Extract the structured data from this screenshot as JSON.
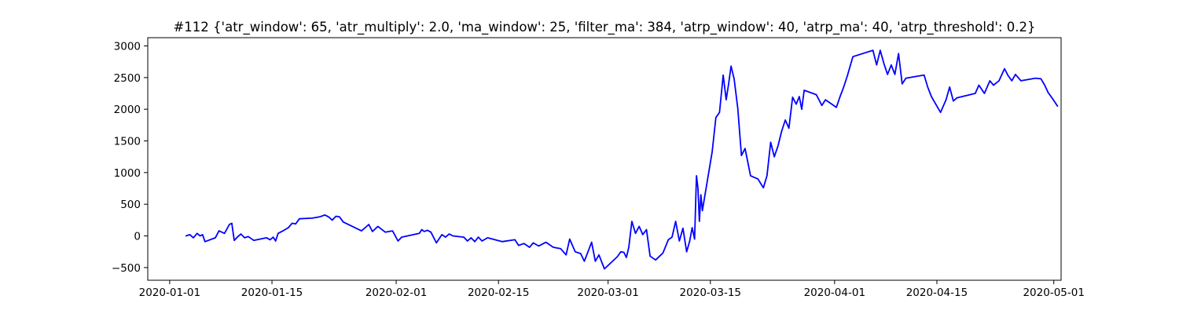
{
  "chart_data": {
    "type": "line",
    "title": "#112 {'atr_window': 65, 'atr_multiply': 2.0, 'ma_window': 25, 'filter_ma': 384, 'atrp_window': 40, 'atrp_ma': 40, 'atrp_threshold': 0.2}",
    "xlabel": "",
    "ylabel": "",
    "xlim": [
      "2019-12-29",
      "2020-05-02"
    ],
    "ylim": [
      -700,
      3130
    ],
    "x_ticks": [
      "2020-01-01",
      "2020-01-15",
      "2020-02-01",
      "2020-02-15",
      "2020-03-01",
      "2020-03-15",
      "2020-04-01",
      "2020-04-15",
      "2020-05-01"
    ],
    "y_ticks": [
      3000,
      2500,
      2000,
      1500,
      1000,
      500,
      0,
      -500
    ],
    "grid": false,
    "line_color": "#0000ff",
    "series": [
      {
        "points": [
          [
            "2020-01-03",
            0
          ],
          [
            "2020-01-03",
            20
          ],
          [
            "2020-01-04",
            -30
          ],
          [
            "2020-01-04",
            40
          ],
          [
            "2020-01-05",
            0
          ],
          [
            "2020-01-05",
            20
          ],
          [
            "2020-01-05",
            -90
          ],
          [
            "2020-01-07",
            -30
          ],
          [
            "2020-01-07",
            80
          ],
          [
            "2020-01-08",
            40
          ],
          [
            "2020-01-09",
            180
          ],
          [
            "2020-01-09",
            200
          ],
          [
            "2020-01-09",
            -70
          ],
          [
            "2020-01-10",
            -20
          ],
          [
            "2020-01-10",
            30
          ],
          [
            "2020-01-11",
            -30
          ],
          [
            "2020-01-11",
            -10
          ],
          [
            "2020-01-12",
            -70
          ],
          [
            "2020-01-14",
            -30
          ],
          [
            "2020-01-14",
            -60
          ],
          [
            "2020-01-15",
            -20
          ],
          [
            "2020-01-15",
            -80
          ],
          [
            "2020-01-15",
            40
          ],
          [
            "2020-01-16",
            80
          ],
          [
            "2020-01-17",
            130
          ],
          [
            "2020-01-17",
            200
          ],
          [
            "2020-01-18",
            190
          ],
          [
            "2020-01-18",
            270
          ],
          [
            "2020-01-20",
            280
          ],
          [
            "2020-01-21",
            300
          ],
          [
            "2020-01-22",
            330
          ],
          [
            "2020-01-22",
            300
          ],
          [
            "2020-01-23",
            250
          ],
          [
            "2020-01-23",
            310
          ],
          [
            "2020-01-24",
            300
          ],
          [
            "2020-01-24",
            220
          ],
          [
            "2020-01-27",
            80
          ],
          [
            "2020-01-27",
            130
          ],
          [
            "2020-01-28",
            180
          ],
          [
            "2020-01-28",
            70
          ],
          [
            "2020-01-29",
            150
          ],
          [
            "2020-01-30",
            60
          ],
          [
            "2020-01-31",
            80
          ],
          [
            "2020-02-01",
            -80
          ],
          [
            "2020-02-01",
            -20
          ],
          [
            "2020-02-04",
            40
          ],
          [
            "2020-02-04",
            100
          ],
          [
            "2020-02-04",
            70
          ],
          [
            "2020-02-05",
            90
          ],
          [
            "2020-02-05",
            60
          ],
          [
            "2020-02-06",
            -110
          ],
          [
            "2020-02-07",
            20
          ],
          [
            "2020-02-07",
            -20
          ],
          [
            "2020-02-08",
            30
          ],
          [
            "2020-02-08",
            0
          ],
          [
            "2020-02-10",
            -20
          ],
          [
            "2020-02-10",
            -80
          ],
          [
            "2020-02-11",
            -30
          ],
          [
            "2020-02-11",
            -90
          ],
          [
            "2020-02-12",
            -20
          ],
          [
            "2020-02-12",
            -80
          ],
          [
            "2020-02-13",
            -30
          ],
          [
            "2020-02-15",
            -90
          ],
          [
            "2020-02-17",
            -60
          ],
          [
            "2020-02-17",
            -150
          ],
          [
            "2020-02-18",
            -120
          ],
          [
            "2020-02-19",
            -180
          ],
          [
            "2020-02-19",
            -110
          ],
          [
            "2020-02-20",
            -160
          ],
          [
            "2020-02-21",
            -100
          ],
          [
            "2020-02-22",
            -180
          ],
          [
            "2020-02-23",
            -200
          ],
          [
            "2020-02-24",
            -300
          ],
          [
            "2020-02-24",
            -50
          ],
          [
            "2020-02-25",
            -250
          ],
          [
            "2020-02-26",
            -280
          ],
          [
            "2020-02-26",
            -400
          ],
          [
            "2020-02-27",
            -250
          ],
          [
            "2020-02-27",
            -100
          ],
          [
            "2020-02-28",
            -400
          ],
          [
            "2020-02-28",
            -300
          ],
          [
            "2020-02-29",
            -520
          ],
          [
            "2020-03-02",
            -330
          ],
          [
            "2020-03-02",
            -250
          ],
          [
            "2020-03-03",
            -260
          ],
          [
            "2020-03-03",
            -340
          ],
          [
            "2020-03-03",
            -180
          ],
          [
            "2020-03-04",
            230
          ],
          [
            "2020-03-04",
            40
          ],
          [
            "2020-03-05",
            150
          ],
          [
            "2020-03-05",
            20
          ],
          [
            "2020-03-06",
            100
          ],
          [
            "2020-03-06",
            -320
          ],
          [
            "2020-03-07",
            -380
          ],
          [
            "2020-03-08",
            -270
          ],
          [
            "2020-03-09",
            -60
          ],
          [
            "2020-03-09",
            -20
          ],
          [
            "2020-03-10",
            230
          ],
          [
            "2020-03-10",
            -80
          ],
          [
            "2020-03-11",
            120
          ],
          [
            "2020-03-11",
            -250
          ],
          [
            "2020-03-12",
            -80
          ],
          [
            "2020-03-12",
            130
          ],
          [
            "2020-03-12",
            -50
          ],
          [
            "2020-03-13",
            950
          ],
          [
            "2020-03-13",
            750
          ],
          [
            "2020-03-13",
            230
          ],
          [
            "2020-03-13",
            650
          ],
          [
            "2020-03-13",
            400
          ],
          [
            "2020-03-15",
            1330
          ],
          [
            "2020-03-15",
            1870
          ],
          [
            "2020-03-16",
            1950
          ],
          [
            "2020-03-16",
            2540
          ],
          [
            "2020-03-17",
            2150
          ],
          [
            "2020-03-17",
            2400
          ],
          [
            "2020-03-17",
            2680
          ],
          [
            "2020-03-18",
            2480
          ],
          [
            "2020-03-18",
            2010
          ],
          [
            "2020-03-19",
            1270
          ],
          [
            "2020-03-19",
            1380
          ],
          [
            "2020-03-20",
            950
          ],
          [
            "2020-03-21",
            900
          ],
          [
            "2020-03-22",
            760
          ],
          [
            "2020-03-22",
            950
          ],
          [
            "2020-03-23",
            1480
          ],
          [
            "2020-03-23",
            1250
          ],
          [
            "2020-03-24",
            1420
          ],
          [
            "2020-03-24",
            1650
          ],
          [
            "2020-03-25",
            1830
          ],
          [
            "2020-03-25",
            1700
          ],
          [
            "2020-03-26",
            2190
          ],
          [
            "2020-03-26",
            2080
          ],
          [
            "2020-03-27",
            2200
          ],
          [
            "2020-03-27",
            2000
          ],
          [
            "2020-03-27",
            2300
          ],
          [
            "2020-03-29",
            2230
          ],
          [
            "2020-03-30",
            2060
          ],
          [
            "2020-03-30",
            2150
          ],
          [
            "2020-04-01",
            2030
          ],
          [
            "2020-04-01",
            2200
          ],
          [
            "2020-04-02",
            2350
          ],
          [
            "2020-04-02",
            2530
          ],
          [
            "2020-04-03",
            2830
          ],
          [
            "2020-04-06",
            2930
          ],
          [
            "2020-04-06",
            2700
          ],
          [
            "2020-04-07",
            2930
          ],
          [
            "2020-04-07",
            2720
          ],
          [
            "2020-04-08",
            2550
          ],
          [
            "2020-04-08",
            2700
          ],
          [
            "2020-04-09",
            2550
          ],
          [
            "2020-04-09",
            2880
          ],
          [
            "2020-04-10",
            2400
          ],
          [
            "2020-04-10",
            2490
          ],
          [
            "2020-04-13",
            2540
          ],
          [
            "2020-04-13",
            2350
          ],
          [
            "2020-04-14",
            2200
          ],
          [
            "2020-04-14",
            2100
          ],
          [
            "2020-04-15",
            1950
          ],
          [
            "2020-04-16",
            2150
          ],
          [
            "2020-04-16",
            2350
          ],
          [
            "2020-04-17",
            2130
          ],
          [
            "2020-04-17",
            2180
          ],
          [
            "2020-04-20",
            2250
          ],
          [
            "2020-04-20",
            2380
          ],
          [
            "2020-04-21",
            2250
          ],
          [
            "2020-04-22",
            2450
          ],
          [
            "2020-04-22",
            2380
          ],
          [
            "2020-04-23",
            2450
          ],
          [
            "2020-04-24",
            2640
          ],
          [
            "2020-04-24",
            2530
          ],
          [
            "2020-04-25",
            2450
          ],
          [
            "2020-04-25",
            2550
          ],
          [
            "2020-04-26",
            2450
          ],
          [
            "2020-04-28",
            2490
          ],
          [
            "2020-04-29",
            2480
          ],
          [
            "2020-04-29",
            2380
          ],
          [
            "2020-04-30",
            2260
          ],
          [
            "2020-04-30",
            2180
          ],
          [
            "2020-05-01",
            2050
          ]
        ]
      }
    ]
  }
}
